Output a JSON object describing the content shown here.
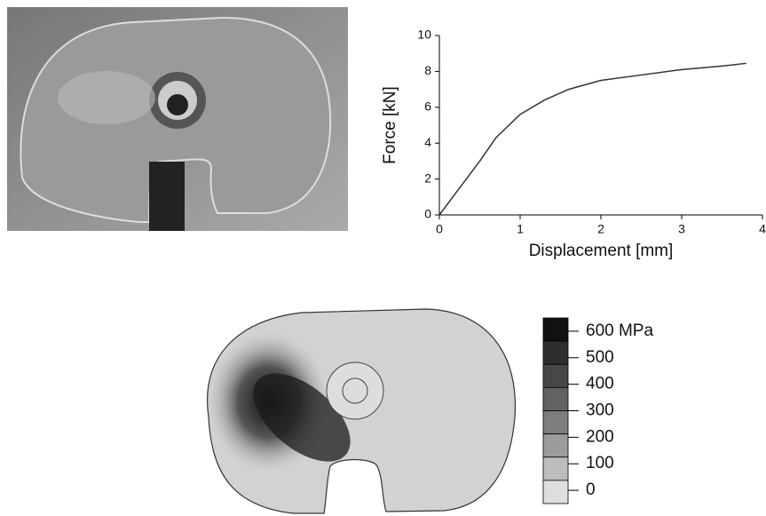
{
  "chart_data": [
    {
      "type": "line",
      "x_label": "Displacement [mm]",
      "y_label": "Force [kN]",
      "x": [
        0,
        0.25,
        0.5,
        0.7,
        1,
        1.3,
        1.6,
        2,
        2.5,
        3,
        3.5,
        3.8
      ],
      "values": [
        0,
        1.5,
        3,
        4.3,
        5.6,
        6.4,
        7,
        7.5,
        7.8,
        8.1,
        8.3,
        8.45
      ],
      "color": "#333333",
      "xlim": [
        0,
        4
      ],
      "xticks": [
        0,
        1,
        2,
        3,
        4
      ],
      "ylim": [
        0,
        10
      ],
      "yticks": [
        0,
        2,
        4,
        6,
        8,
        10
      ]
    },
    {
      "type": "colorbar",
      "ticks": [
        {
          "value": 600,
          "label": "600 MPa"
        },
        500,
        400,
        300,
        200,
        100,
        0
      ],
      "lim": [
        -50,
        650
      ],
      "colors": [
        "#111111",
        "#2e2e2e",
        "#474747",
        "#626262",
        "#7e7e7e",
        "#9c9c9c",
        "#bdbdbd",
        "#dedede"
      ]
    }
  ]
}
